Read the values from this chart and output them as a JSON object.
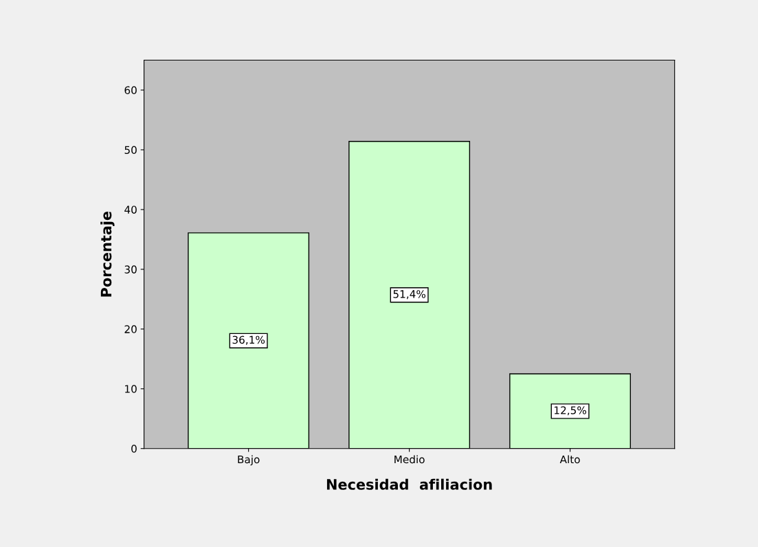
{
  "chart_data": {
    "type": "bar",
    "xlabel": "Necesidad  afiliacion",
    "ylabel": "Porcentaje",
    "categories": [
      "Bajo",
      "Medio",
      "Alto"
    ],
    "values": [
      36.1,
      51.4,
      12.5
    ],
    "value_labels": [
      "36,1%",
      "51,4%",
      "12,5%"
    ],
    "color": "#ccffcc",
    "ylim": [
      0,
      65
    ],
    "yticks": [
      0,
      10,
      20,
      30,
      40,
      50,
      60
    ],
    "grid": false
  }
}
